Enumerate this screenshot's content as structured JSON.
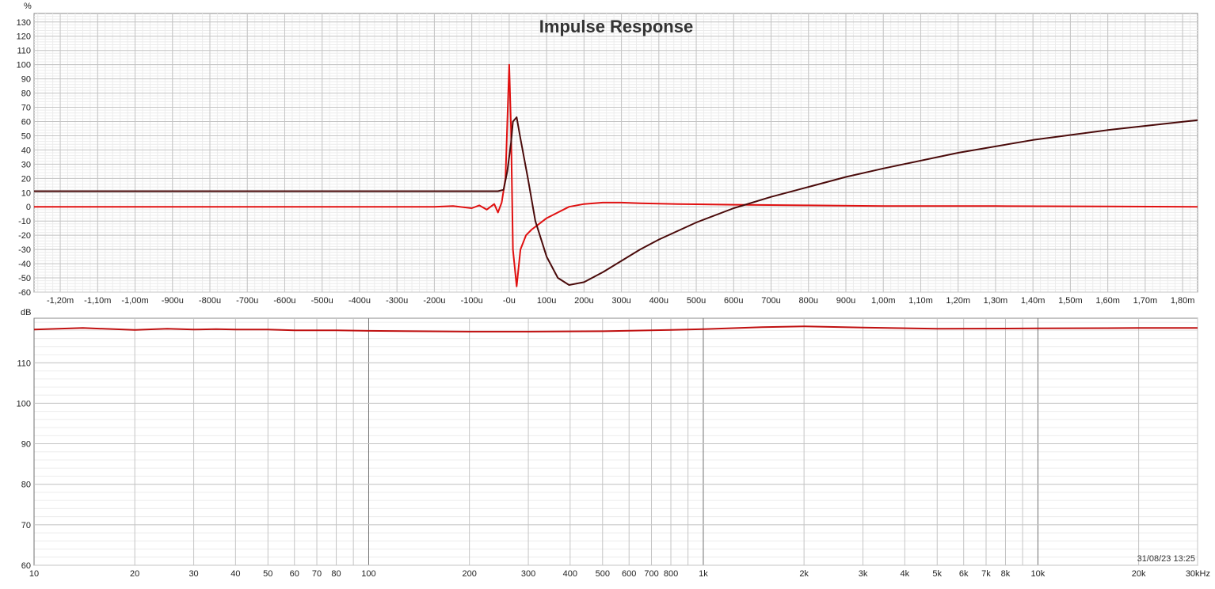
{
  "chart_data": [
    {
      "type": "line",
      "title": "Impulse Response",
      "ylabel": "%",
      "xlabel": "",
      "xlim": [
        -1.27,
        1.84
      ],
      "ylim": [
        -60,
        136
      ],
      "x_unit": "ms",
      "y_ticks": [
        "130",
        "120",
        "110",
        "100",
        "90",
        "80",
        "70",
        "60",
        "50",
        "40",
        "30",
        "20",
        "10",
        "0",
        "-10",
        "-20",
        "-30",
        "-40",
        "-50",
        "-60"
      ],
      "y_tick_values": [
        130,
        120,
        110,
        100,
        90,
        80,
        70,
        60,
        50,
        40,
        30,
        20,
        10,
        0,
        -10,
        -20,
        -30,
        -40,
        -50,
        -60
      ],
      "x_ticks": [
        "-1,20m",
        "-1,10m",
        "-1,00m",
        "-900u",
        "-800u",
        "-700u",
        "-600u",
        "-500u",
        "-400u",
        "-300u",
        "-200u",
        "-100u",
        "-0u",
        "100u",
        "200u",
        "300u",
        "400u",
        "500u",
        "600u",
        "700u",
        "800u",
        "900u",
        "1,00m",
        "1,10m",
        "1,20m",
        "1,30m",
        "1,40m",
        "1,50m",
        "1,60m",
        "1,70m",
        "1,80m"
      ],
      "x_tick_values": [
        -1.2,
        -1.1,
        -1.0,
        -0.9,
        -0.8,
        -0.7,
        -0.6,
        -0.5,
        -0.4,
        -0.3,
        -0.2,
        -0.1,
        0,
        0.1,
        0.2,
        0.3,
        0.4,
        0.5,
        0.6,
        0.7,
        0.8,
        0.9,
        1.0,
        1.1,
        1.2,
        1.3,
        1.4,
        1.5,
        1.6,
        1.7,
        1.8
      ],
      "grid": true,
      "series": [
        {
          "color": "#e01010",
          "x": [
            -1.27,
            -0.5,
            -0.2,
            -0.15,
            -0.1,
            -0.08,
            -0.06,
            -0.04,
            -0.03,
            -0.02,
            -0.01,
            0.0,
            0.005,
            0.01,
            0.02,
            0.03,
            0.045,
            0.06,
            0.08,
            0.1,
            0.13,
            0.16,
            0.2,
            0.25,
            0.3,
            0.35,
            0.45,
            0.6,
            0.8,
            1.0,
            1.3,
            1.6,
            1.84
          ],
          "y": [
            0,
            0,
            0,
            0.5,
            -1,
            1,
            -2,
            2,
            -4,
            3,
            20,
            100,
            55,
            -30,
            -56,
            -30,
            -20,
            -16,
            -12,
            -8,
            -4,
            0,
            2,
            3,
            3,
            2.5,
            2,
            1.5,
            1,
            0.5,
            0.5,
            0.3,
            0
          ]
        },
        {
          "color": "#4a0a0a",
          "x": [
            -1.27,
            -0.5,
            -0.03,
            -0.015,
            -0.005,
            0.005,
            0.01,
            0.02,
            0.03,
            0.05,
            0.07,
            0.1,
            0.13,
            0.16,
            0.2,
            0.25,
            0.3,
            0.35,
            0.4,
            0.5,
            0.6,
            0.7,
            0.8,
            0.9,
            1.0,
            1.2,
            1.4,
            1.6,
            1.84
          ],
          "y": [
            11,
            11,
            11,
            12,
            25,
            45,
            60,
            63,
            48,
            20,
            -10,
            -35,
            -50,
            -55,
            -53,
            -46,
            -38,
            -30,
            -23,
            -11,
            -1,
            7,
            14,
            21,
            27,
            38,
            47,
            54,
            61
          ]
        }
      ]
    },
    {
      "type": "line",
      "title": "",
      "ylabel": "dB",
      "xlabel": "",
      "xscale": "log",
      "xlim": [
        10,
        30000
      ],
      "ylim": [
        60,
        121
      ],
      "x_unit": "Hz",
      "y_ticks": [
        "110",
        "100",
        "90",
        "80",
        "70",
        "60"
      ],
      "y_tick_values": [
        110,
        100,
        90,
        80,
        70,
        60
      ],
      "x_ticks": [
        "10",
        "20",
        "30",
        "40",
        "50",
        "60",
        "70",
        "80",
        "100",
        "200",
        "300",
        "400",
        "500",
        "600",
        "700",
        "800",
        "1k",
        "2k",
        "3k",
        "4k",
        "5k",
        "6k",
        "7k",
        "8k",
        "10k",
        "20k",
        "30kHz"
      ],
      "x_tick_values": [
        10,
        20,
        30,
        40,
        50,
        60,
        70,
        80,
        100,
        200,
        300,
        400,
        500,
        600,
        700,
        800,
        1000,
        2000,
        3000,
        4000,
        5000,
        6000,
        7000,
        8000,
        10000,
        20000,
        30000
      ],
      "grid": true,
      "series": [
        {
          "color": "#c01010",
          "x": [
            10,
            14,
            20,
            25,
            30,
            35,
            40,
            50,
            60,
            80,
            100,
            200,
            300,
            500,
            800,
            1000,
            1500,
            2000,
            3000,
            5000,
            10000,
            20000,
            30000
          ],
          "y": [
            118.2,
            118.6,
            118.1,
            118.4,
            118.2,
            118.3,
            118.2,
            118.2,
            118.0,
            118.0,
            117.9,
            117.7,
            117.7,
            117.8,
            118.1,
            118.3,
            118.8,
            119.0,
            118.7,
            118.4,
            118.5,
            118.6,
            118.6
          ]
        }
      ]
    }
  ],
  "timestamp": "31/08/23 13:25"
}
